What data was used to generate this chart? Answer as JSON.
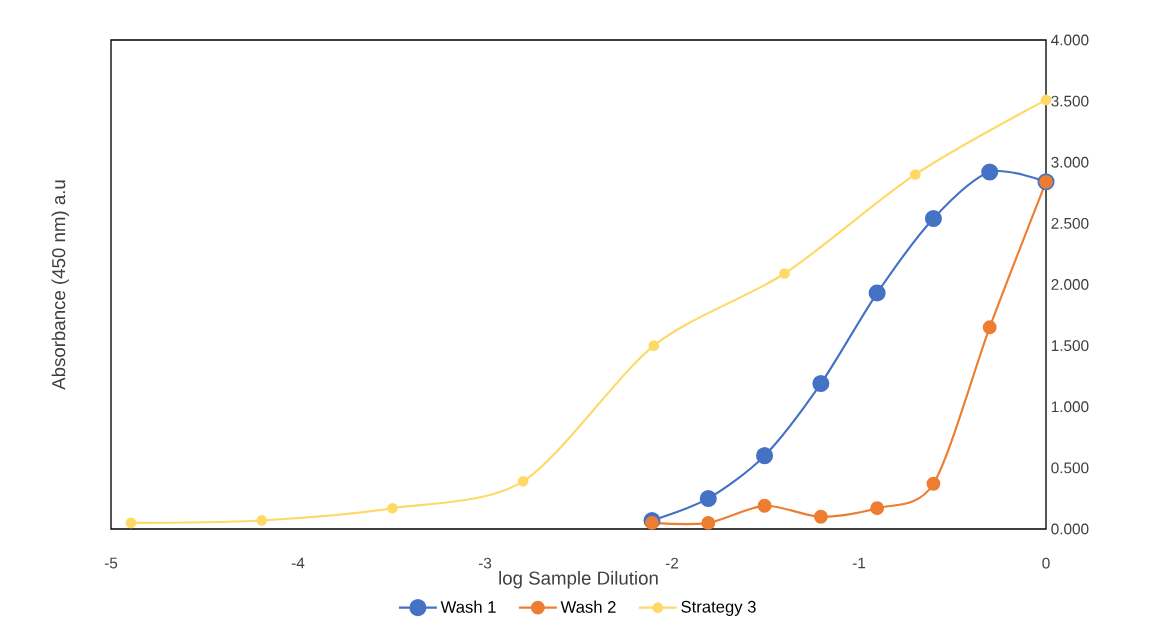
{
  "chart_data": {
    "type": "line",
    "xlabel": "log Sample Dilution",
    "ylabel": "Absorbance (450 nm) a.u",
    "series": [
      {
        "name": "Wash 1",
        "color": "#4472c4",
        "x": [
          -2.107,
          -1.806,
          -1.505,
          -1.204,
          -0.903,
          -0.602,
          -0.301,
          0
        ],
        "values": [
          0.07,
          0.25,
          0.6,
          1.19,
          1.93,
          2.54,
          2.92,
          2.84
        ]
      },
      {
        "name": "Wash 2",
        "color": "#ed7d31",
        "x": [
          -2.107,
          -1.806,
          -1.505,
          -1.204,
          -0.903,
          -0.602,
          -0.301,
          0
        ],
        "values": [
          0.05,
          0.05,
          0.19,
          0.1,
          0.17,
          0.37,
          1.65,
          2.84
        ]
      },
      {
        "name": "Strategy 3",
        "color": "#ffd966",
        "x": [
          -4.893,
          -4.194,
          -3.495,
          -2.796,
          -2.097,
          -1.398,
          -0.699,
          0
        ],
        "values": [
          0.05,
          0.07,
          0.17,
          0.39,
          1.5,
          2.09,
          2.9,
          3.51
        ]
      }
    ],
    "xlim": [
      -5,
      0
    ],
    "xticks": [
      -5,
      -4,
      -3,
      -2,
      -1,
      0
    ],
    "ylim": [
      0,
      4
    ],
    "yticks": [
      {
        "value": 0,
        "label": "0.000"
      },
      {
        "value": 0.5,
        "label": "0.500"
      },
      {
        "value": 1,
        "label": "1.000"
      },
      {
        "value": 1.5,
        "label": "1.500"
      },
      {
        "value": 2,
        "label": "2.000"
      },
      {
        "value": 2.5,
        "label": "2.500"
      },
      {
        "value": 3,
        "label": "3.000"
      },
      {
        "value": 3.5,
        "label": "3.500"
      },
      {
        "value": 4,
        "label": "4.000"
      }
    ],
    "grid": false,
    "legend": "bottom",
    "marker": "circle",
    "line_style": "solid"
  }
}
